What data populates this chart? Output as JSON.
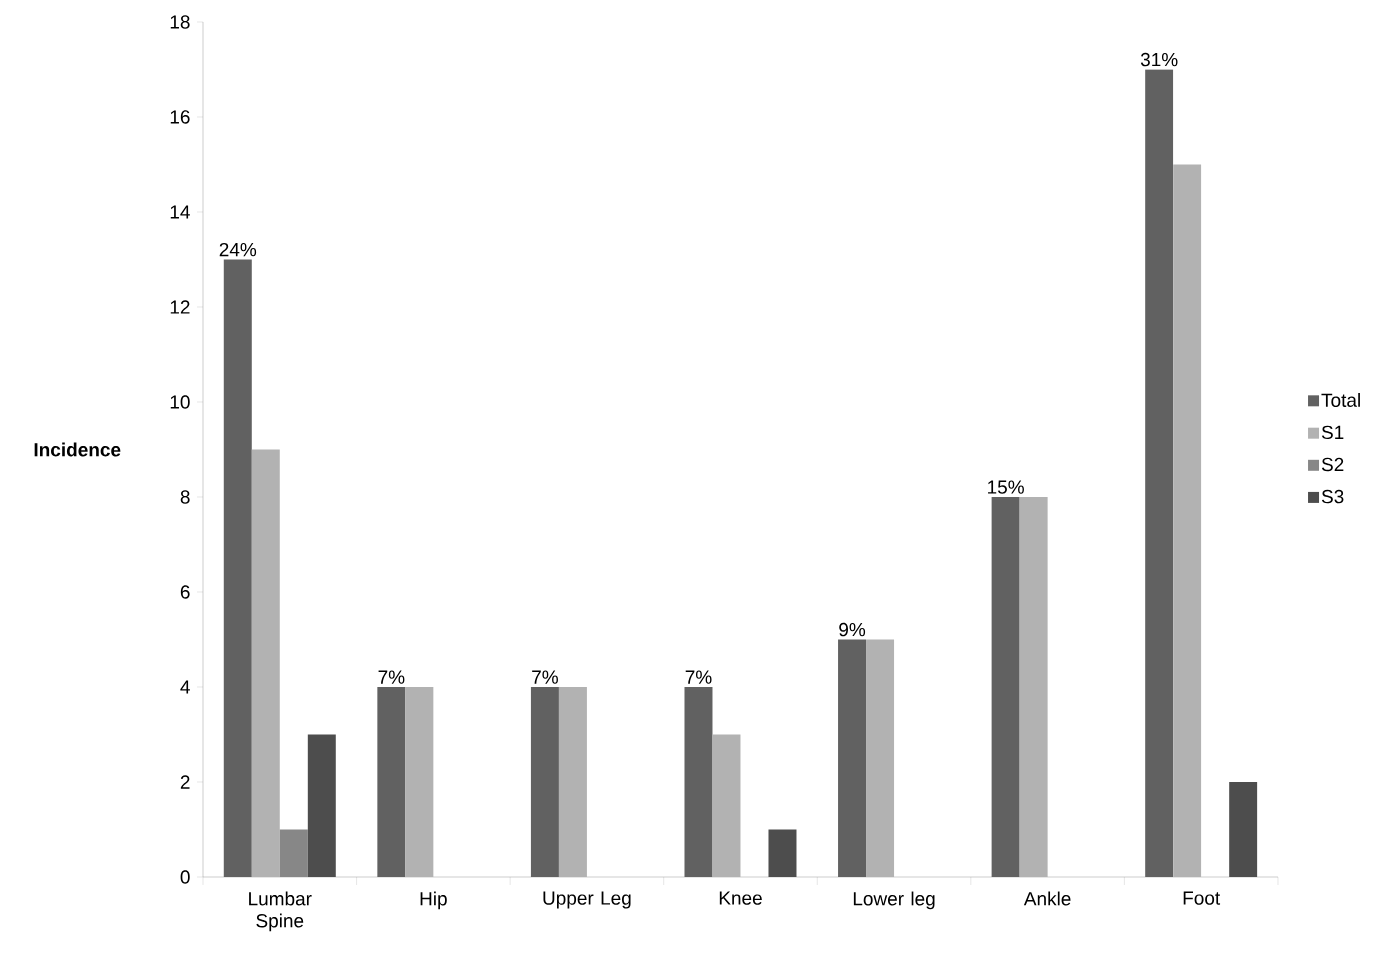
{
  "chart_data": {
    "type": "bar",
    "ylabel": "Incidence",
    "categories": [
      "Lumbar Spine",
      "Hip",
      "Upper Leg",
      "Knee",
      "Lower leg",
      "Ankle",
      "Foot"
    ],
    "series": [
      {
        "name": "Total",
        "color": "#616161",
        "values": [
          13,
          4,
          4,
          4,
          5,
          8,
          17
        ]
      },
      {
        "name": "S1",
        "color": "#b2b2b2",
        "values": [
          9,
          4,
          4,
          3,
          5,
          8,
          15
        ]
      },
      {
        "name": "S2",
        "color": "#878787",
        "values": [
          1,
          0,
          0,
          0,
          0,
          0,
          0
        ]
      },
      {
        "name": "S3",
        "color": "#4d4d4d",
        "values": [
          3,
          0,
          0,
          1,
          0,
          0,
          2
        ]
      }
    ],
    "annotations": [
      "24%",
      "7%",
      "7%",
      "7%",
      "9%",
      "15%",
      "31%"
    ],
    "ylim": [
      0,
      18
    ],
    "yticks": [
      0,
      2,
      4,
      6,
      8,
      10,
      12,
      14,
      16,
      18
    ],
    "legend": "right",
    "grid": false
  }
}
